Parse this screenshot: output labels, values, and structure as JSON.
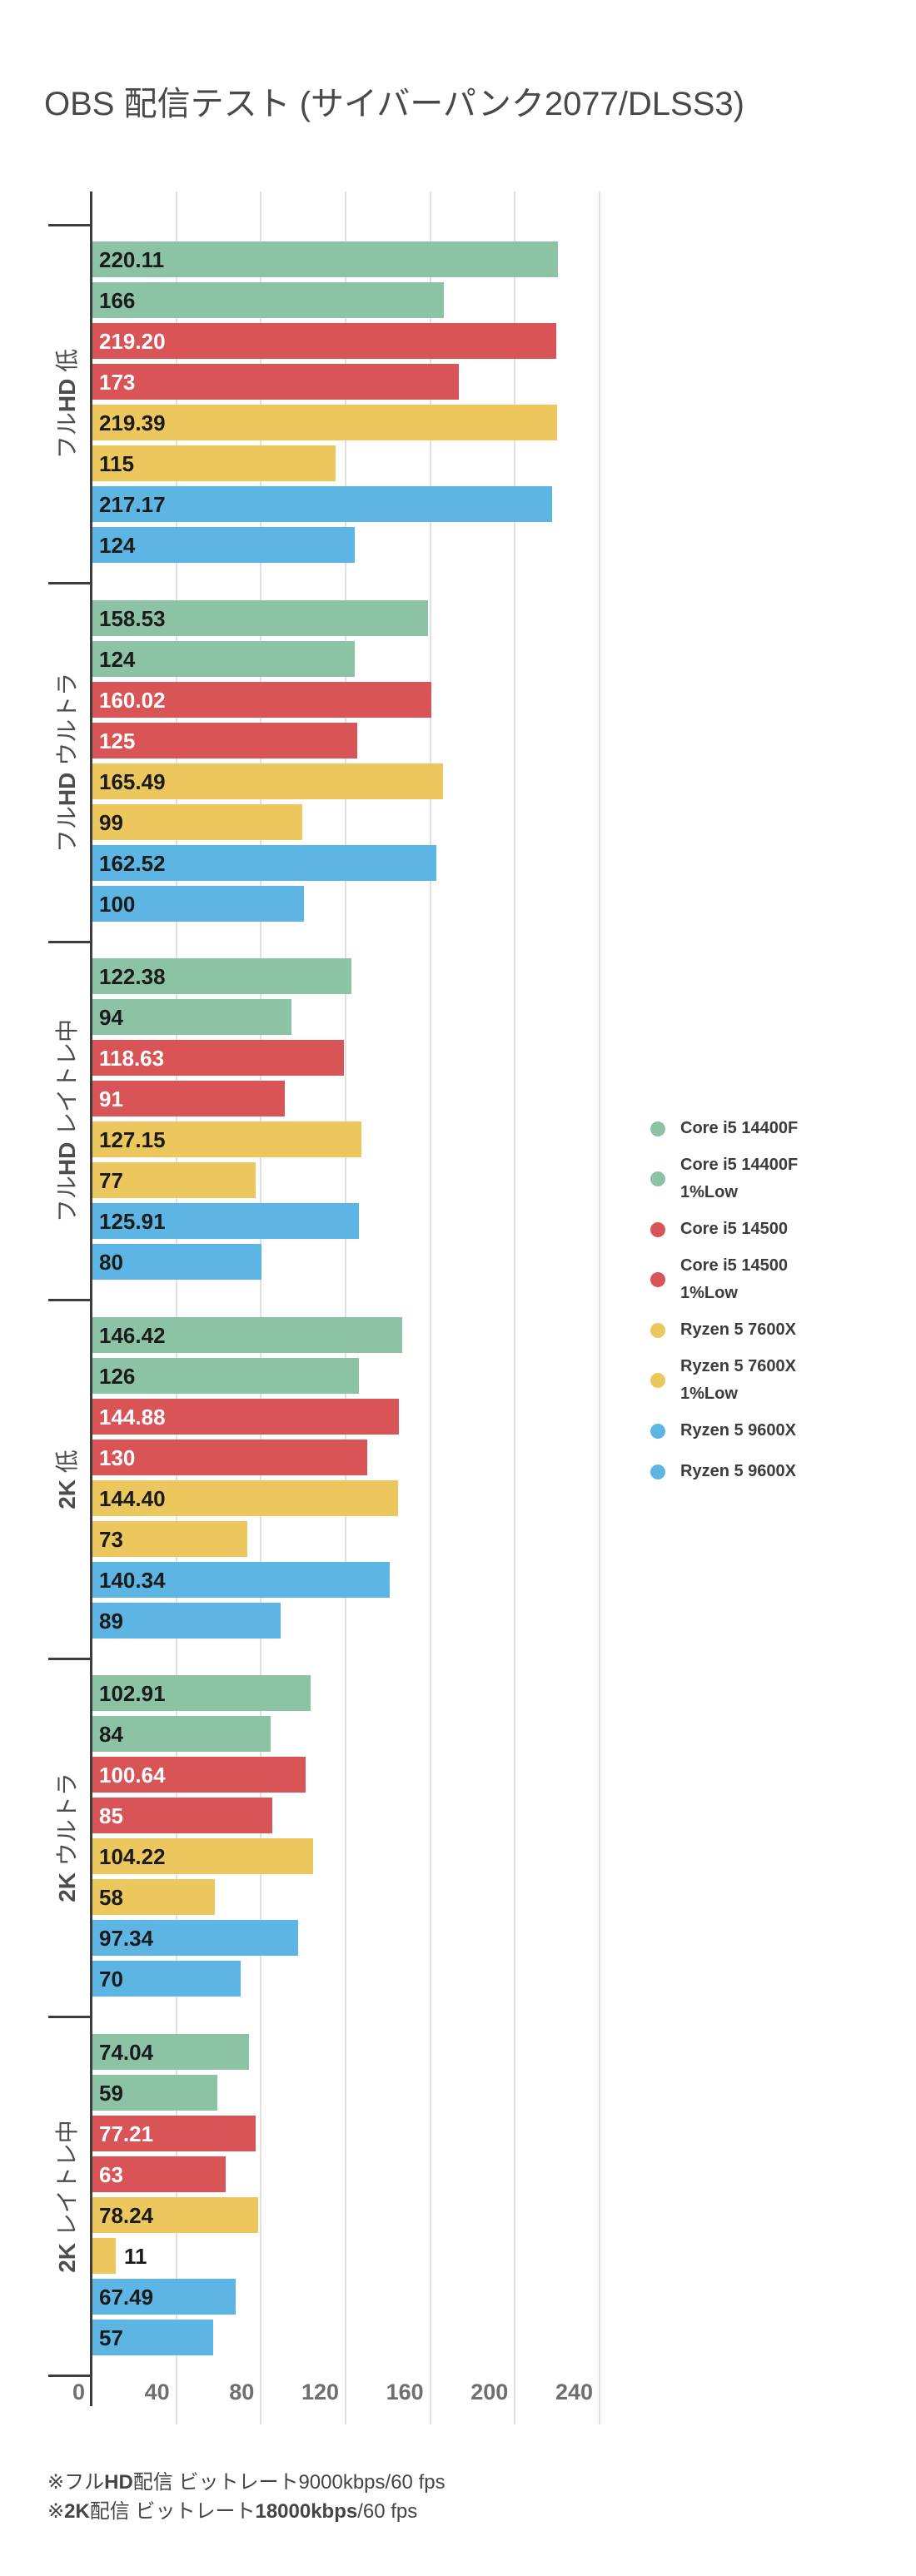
{
  "title": "OBS 配信テスト (サイバーパンク2077/DLSS3)",
  "chart_data": {
    "type": "bar",
    "orientation": "horizontal",
    "title": "OBS 配信テスト (サイバーパンク2077/DLSS3)",
    "value_axis": {
      "min": 0,
      "max": 240,
      "ticks": [
        0,
        40,
        80,
        120,
        160,
        200,
        240
      ],
      "grid": true
    },
    "legend_position": "right",
    "categories": [
      "フルHD 低",
      "フルHD ウルトラ",
      "フルHD レイトレ中",
      "2K 低",
      "2K ウルトラ",
      "2K レイトレ中"
    ],
    "category_label_parts": [
      {
        "pre": "フル",
        "em": "HD",
        "post": " 低"
      },
      {
        "pre": "フル",
        "em": "HD",
        "post": " ウルトラ"
      },
      {
        "pre": "フル",
        "em": "HD",
        "post": " レイトレ中"
      },
      {
        "pre": "",
        "em": "2K",
        "post": " 低"
      },
      {
        "pre": "",
        "em": "2K",
        "post": " ウルトラ"
      },
      {
        "pre": "",
        "em": "2K",
        "post": " レイトレ中"
      }
    ],
    "series": [
      {
        "name": "Core i5 14400F",
        "color_key": "green",
        "values": [
          220.11,
          158.53,
          122.38,
          146.42,
          102.91,
          74.04
        ],
        "labels": [
          "220.11",
          "158.53",
          "122.38",
          "146.42",
          "102.91",
          "74.04"
        ]
      },
      {
        "name": "Core i5 14400F 1%Low",
        "color_key": "green",
        "values": [
          166,
          124,
          94,
          126,
          84,
          59
        ],
        "labels": [
          "166",
          "124",
          "94",
          "126",
          "84",
          "59"
        ]
      },
      {
        "name": "Core i5 14500",
        "color_key": "red",
        "values": [
          219.2,
          160.02,
          118.63,
          144.88,
          100.64,
          77.21
        ],
        "labels": [
          "219.20",
          "160.02",
          "118.63",
          "144.88",
          "100.64",
          "77.21"
        ]
      },
      {
        "name": "Core i5 14500 1%Low",
        "color_key": "red",
        "values": [
          173,
          125,
          91,
          130,
          85,
          63
        ],
        "labels": [
          "173",
          "125",
          "91",
          "130",
          "85",
          "63"
        ]
      },
      {
        "name": "Ryzen 5 7600X",
        "color_key": "yellow",
        "values": [
          219.39,
          165.49,
          127.15,
          144.4,
          104.22,
          78.24
        ],
        "labels": [
          "219.39",
          "165.49",
          "127.15",
          "144.40",
          "104.22",
          "78.24"
        ]
      },
      {
        "name": "Ryzen 5 7600X 1%Low",
        "color_key": "yellow",
        "values": [
          115,
          99,
          77,
          73,
          58,
          11
        ],
        "labels": [
          "115",
          "99",
          "77",
          "73",
          "58",
          "11"
        ]
      },
      {
        "name": "Ryzen 5 9600X",
        "color_key": "blue",
        "values": [
          217.17,
          162.52,
          125.91,
          140.34,
          97.34,
          67.49
        ],
        "labels": [
          "217.17",
          "162.52",
          "125.91",
          "140.34",
          "97.34",
          "67.49"
        ]
      },
      {
        "name": "Ryzen 5 9600X",
        "color_key": "blue",
        "values": [
          124,
          100,
          80,
          89,
          70,
          57
        ],
        "labels": [
          "124",
          "100",
          "80",
          "89",
          "70",
          "57"
        ]
      }
    ],
    "legend_entries": [
      {
        "lines": [
          "Core i5 14400F"
        ],
        "color_key": "green"
      },
      {
        "lines": [
          "Core i5 14400F",
          "1%Low"
        ],
        "color_key": "green"
      },
      {
        "lines": [
          "Core i5 14500"
        ],
        "color_key": "red"
      },
      {
        "lines": [
          "Core i5 14500",
          "1%Low"
        ],
        "color_key": "red"
      },
      {
        "lines": [
          "Ryzen 5 7600X"
        ],
        "color_key": "yellow"
      },
      {
        "lines": [
          "Ryzen 5 7600X",
          "1%Low"
        ],
        "color_key": "yellow"
      },
      {
        "lines": [
          "Ryzen 5 9600X"
        ],
        "color_key": "blue"
      },
      {
        "lines": [
          "Ryzen 5 9600X"
        ],
        "color_key": "blue"
      }
    ]
  },
  "colors": {
    "green": "#8cc3a4",
    "red": "#d95456",
    "yellow": "#ecc75e",
    "blue": "#5cb5e3",
    "grid": "#e0e0e0",
    "axis": "#3d3d3d"
  },
  "bar_label_text_colors": {
    "green": "#1b1b1b",
    "red": "#ffffff",
    "yellow": "#1b1b1b",
    "blue": "#1b1b1b",
    "outside": "#1b1b1b"
  },
  "footnotes": [
    {
      "segments": [
        {
          "t": "※フル"
        },
        {
          "t": "HD",
          "b": true
        },
        {
          "t": "配信 ビットレート9000kbps/60 fps"
        }
      ]
    },
    {
      "segments": [
        {
          "t": "※"
        },
        {
          "t": "2K",
          "b": true
        },
        {
          "t": "配信 ビットレート"
        },
        {
          "t": "18000kbps",
          "b": true
        },
        {
          "t": "/60 fps"
        }
      ]
    }
  ]
}
